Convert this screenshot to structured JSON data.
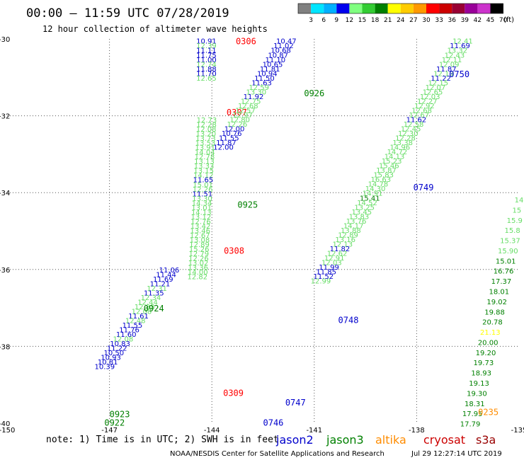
{
  "header": {
    "title": "00:00 – 11:59 UTC 07/28/2019",
    "subtitle": "12 hour collection of altimeter wave heights"
  },
  "colorbar": {
    "unit": "(ft)",
    "labels": [
      "3",
      "6",
      "9",
      "12",
      "15",
      "18",
      "21",
      "24",
      "27",
      "30",
      "33",
      "36",
      "39",
      "42",
      "45",
      "70"
    ],
    "colors": [
      "#808080",
      "#00e5ff",
      "#00b0ff",
      "#0000ee",
      "#80ff80",
      "#33cc33",
      "#008000",
      "#ffff00",
      "#ffcc00",
      "#ff9900",
      "#ff0000",
      "#cc0000",
      "#990033",
      "#990099",
      "#cc33cc",
      "#000000"
    ]
  },
  "footer": {
    "note": "note:  1) Time is in UTC;  2) SWH is in feet",
    "credit": "NOAA/NESDIS Center for Satellite Applications and Research",
    "timestamp": "Jul 29 12:27:14 UTC 2019",
    "legend": [
      {
        "name": "jason2",
        "color": "#0000cc"
      },
      {
        "name": "jason3",
        "color": "#008000"
      },
      {
        "name": "altika",
        "color": "#ff8c00"
      },
      {
        "name": "cryosat",
        "color": "#cc0000"
      },
      {
        "name": "s3a",
        "color": "#990000"
      }
    ]
  },
  "chart_data": {
    "type": "scatter",
    "xlim": [
      -150,
      -135
    ],
    "ylim": [
      -40,
      -30
    ],
    "x_ticks": [
      {
        "value": -150,
        "label": "-150"
      },
      {
        "value": -147,
        "label": "-147"
      },
      {
        "value": -144,
        "label": "-144"
      },
      {
        "value": -141,
        "label": "-141"
      },
      {
        "value": -138,
        "label": "-138"
      },
      {
        "value": -135,
        "label": "-135"
      }
    ],
    "y_ticks": [
      {
        "value": -30,
        "label": "-30"
      },
      {
        "value": -32,
        "label": "-32"
      },
      {
        "value": -34,
        "label": "-34"
      },
      {
        "value": -36,
        "label": "-36"
      },
      {
        "value": -38,
        "label": "-38"
      },
      {
        "value": -40,
        "label": "-40"
      }
    ],
    "grid": true,
    "colors": {
      "light": "#66dd66",
      "blue": "#0000cc",
      "green": "#008000",
      "red": "#ff0000",
      "orange": "#ff8c00",
      "yellow": "#ffff00"
    },
    "tracks": [
      {
        "label": "0306",
        "label_x": -143.3,
        "label_y": -30.05,
        "label_color": "red",
        "x_start": -144.16,
        "y_start": -30.05,
        "dx": 0,
        "dy": 0.12,
        "samples": [
          {
            "v": "10.91",
            "c": "blue"
          },
          {
            "v": "12.39",
            "c": "light"
          },
          {
            "v": "11.11",
            "c": "blue"
          },
          {
            "v": "11.75",
            "c": "blue"
          },
          {
            "v": "11.00",
            "c": "blue"
          },
          {
            "v": "12.74",
            "c": "light"
          },
          {
            "v": "11.88",
            "c": "blue"
          },
          {
            "v": "11.70",
            "c": "blue"
          },
          {
            "v": "12.65",
            "c": "light"
          }
        ]
      },
      {
        "label": "0307",
        "label_x": -143.57,
        "label_y": -31.9,
        "label_color": "red",
        "x_start": -144.15,
        "y_start": -32.1,
        "dx": -0.008,
        "dy": 0.12,
        "samples": [
          {
            "v": "12.73",
            "c": "light"
          },
          {
            "v": "12.28",
            "c": "light"
          },
          {
            "v": "12.08",
            "c": "light"
          },
          {
            "v": "13.20",
            "c": "light"
          },
          {
            "v": "13.73",
            "c": "light"
          },
          {
            "v": "13.53",
            "c": "light"
          },
          {
            "v": "13.91",
            "c": "light"
          },
          {
            "v": "14.04",
            "c": "light"
          },
          {
            "v": "12.78",
            "c": "light"
          },
          {
            "v": "13.13",
            "c": "light"
          },
          {
            "v": "13.33",
            "c": "light"
          },
          {
            "v": "13.15",
            "c": "light"
          },
          {
            "v": "14.12",
            "c": "light"
          },
          {
            "v": "11.65",
            "c": "blue"
          },
          {
            "v": "15.01",
            "c": "light"
          },
          {
            "v": "12.26",
            "c": "light"
          },
          {
            "v": "11.51",
            "c": "blue"
          },
          {
            "v": "13.30",
            "c": "light"
          },
          {
            "v": "14.34",
            "c": "light"
          },
          {
            "v": "13.01",
            "c": "light"
          },
          {
            "v": "14.13",
            "c": "light"
          },
          {
            "v": "13.12",
            "c": "light"
          },
          {
            "v": "12.76",
            "c": "light"
          },
          {
            "v": "13.42",
            "c": "light"
          },
          {
            "v": "13.46",
            "c": "light"
          },
          {
            "v": "12.67",
            "c": "light"
          },
          {
            "v": "13.08",
            "c": "light"
          },
          {
            "v": "12.89",
            "c": "light"
          },
          {
            "v": "15.26",
            "c": "light"
          },
          {
            "v": "12.79",
            "c": "light"
          },
          {
            "v": "12.26",
            "c": "light"
          },
          {
            "v": "13.02",
            "c": "light"
          },
          {
            "v": "13.36",
            "c": "light"
          },
          {
            "v": "14.00",
            "c": "light"
          },
          {
            "v": "12.82",
            "c": "light"
          }
        ]
      },
      {
        "label": "0308",
        "label_x": -143.65,
        "label_y": -35.5,
        "label_color": "red",
        "x_start": 0,
        "y_start": 0,
        "dx": 0,
        "dy": 0,
        "samples": []
      },
      {
        "label": "0309",
        "label_x": -143.67,
        "label_y": -39.2,
        "label_color": "red",
        "x_start": 0,
        "y_start": 0,
        "dx": 0,
        "dy": 0,
        "samples": []
      },
      {
        "label": "0926",
        "label_x": -141.3,
        "label_y": -31.4,
        "label_color": "green",
        "x_start": -141.82,
        "y_start": -30.05,
        "dx": -0.08,
        "dy": 0.12,
        "samples": [
          {
            "v": "10.47",
            "c": "blue"
          },
          {
            "v": "11.02",
            "c": "blue"
          },
          {
            "v": "10.68",
            "c": "blue"
          },
          {
            "v": "10.87",
            "c": "blue"
          },
          {
            "v": "11.10",
            "c": "blue"
          },
          {
            "v": "10.65",
            "c": "blue"
          },
          {
            "v": "11.81",
            "c": "blue"
          },
          {
            "v": "10.94",
            "c": "blue"
          },
          {
            "v": "11.50",
            "c": "blue"
          },
          {
            "v": "11.63",
            "c": "blue"
          },
          {
            "v": "12.59",
            "c": "light"
          },
          {
            "v": "13.30",
            "c": "light"
          },
          {
            "v": "11.92",
            "c": "blue"
          },
          {
            "v": "12.75",
            "c": "light"
          },
          {
            "v": "12.68",
            "c": "light"
          },
          {
            "v": "12.57",
            "c": "light"
          },
          {
            "v": "12.97",
            "c": "light"
          },
          {
            "v": "12.80",
            "c": "light"
          },
          {
            "v": "12.26",
            "c": "light"
          },
          {
            "v": "12.00",
            "c": "blue"
          },
          {
            "v": "10.76",
            "c": "blue"
          },
          {
            "v": "11.55",
            "c": "blue"
          },
          {
            "v": "11.87",
            "c": "blue"
          },
          {
            "v": "12.00",
            "c": "blue"
          }
        ]
      },
      {
        "label": "0925",
        "label_x": -143.25,
        "label_y": -34.3,
        "label_color": "green",
        "x_start": 0,
        "y_start": 0,
        "dx": 0,
        "dy": 0,
        "samples": []
      },
      {
        "label": "0924",
        "label_x": -146.0,
        "label_y": -37.0,
        "label_color": "green",
        "x_start": -145.25,
        "y_start": -36.0,
        "dx": -0.09,
        "dy": 0.12,
        "samples": [
          {
            "v": "11.06",
            "c": "blue"
          },
          {
            "v": "11.44",
            "c": "blue"
          },
          {
            "v": "11.69",
            "c": "blue"
          },
          {
            "v": "11.21",
            "c": "blue"
          },
          {
            "v": "12.31",
            "c": "light"
          },
          {
            "v": "11.35",
            "c": "blue"
          },
          {
            "v": "12.34",
            "c": "light"
          },
          {
            "v": "12.44",
            "c": "light"
          },
          {
            "v": "12.88",
            "c": "light"
          },
          {
            "v": "12.08",
            "c": "light"
          },
          {
            "v": "11.61",
            "c": "blue"
          },
          {
            "v": "12.48",
            "c": "light"
          },
          {
            "v": "11.55",
            "c": "blue"
          },
          {
            "v": "11.76",
            "c": "blue"
          },
          {
            "v": "11.60",
            "c": "blue"
          },
          {
            "v": "12.08",
            "c": "light"
          },
          {
            "v": "10.83",
            "c": "blue"
          },
          {
            "v": "11.22",
            "c": "blue"
          },
          {
            "v": "10.50",
            "c": "blue"
          },
          {
            "v": "10.93",
            "c": "blue"
          },
          {
            "v": "10.81",
            "c": "blue"
          },
          {
            "v": "10.39",
            "c": "blue"
          }
        ]
      },
      {
        "label": "0923",
        "label_x": -147.0,
        "label_y": -39.75,
        "label_color": "green",
        "x_start": 0,
        "y_start": 0,
        "dx": 0,
        "dy": 0,
        "samples": []
      },
      {
        "label": "0922",
        "label_x": -147.15,
        "label_y": -39.97,
        "label_color": "green",
        "x_start": 0,
        "y_start": 0,
        "dx": 0,
        "dy": 0,
        "samples": []
      },
      {
        "label": "0750",
        "label_x": -137.05,
        "label_y": -30.9,
        "label_color": "blue",
        "x_start": -136.65,
        "y_start": -30.05,
        "dx": -0.08,
        "dy": 0.12,
        "samples": [
          {
            "v": "12.41",
            "c": "light"
          },
          {
            "v": "11.69",
            "c": "blue"
          },
          {
            "v": "13.32",
            "c": "light"
          },
          {
            "v": "12.43",
            "c": "light"
          },
          {
            "v": "12.11",
            "c": "light"
          },
          {
            "v": "12.09",
            "c": "light"
          },
          {
            "v": "11.87",
            "c": "blue"
          },
          {
            "v": "12.19",
            "c": "light"
          },
          {
            "v": "11.22",
            "c": "blue"
          },
          {
            "v": "12.15",
            "c": "light"
          },
          {
            "v": "12.07",
            "c": "light"
          },
          {
            "v": "12.65",
            "c": "light"
          },
          {
            "v": "12.03",
            "c": "light"
          },
          {
            "v": "12.27",
            "c": "light"
          },
          {
            "v": "12.92",
            "c": "light"
          },
          {
            "v": "12.68",
            "c": "light"
          },
          {
            "v": "12.67",
            "c": "light"
          },
          {
            "v": "11.62",
            "c": "blue"
          },
          {
            "v": "12.58",
            "c": "light"
          },
          {
            "v": "12.45",
            "c": "light"
          },
          {
            "v": "12.30",
            "c": "light"
          },
          {
            "v": "12.28",
            "c": "light"
          },
          {
            "v": "13.38",
            "c": "light"
          },
          {
            "v": "14.96",
            "c": "light"
          },
          {
            "v": "14.72",
            "c": "light"
          },
          {
            "v": "14.13",
            "c": "light"
          },
          {
            "v": "15.23",
            "c": "light"
          },
          {
            "v": "15.46",
            "c": "light"
          },
          {
            "v": "13.87",
            "c": "light"
          },
          {
            "v": "15.83",
            "c": "light"
          },
          {
            "v": "16.63",
            "c": "light"
          },
          {
            "v": "14.78",
            "c": "light"
          },
          {
            "v": "14.30",
            "c": "light"
          },
          {
            "v": "14.91",
            "c": "light"
          },
          {
            "v": "15.41",
            "c": "green"
          },
          {
            "v": "14.52",
            "c": "light"
          },
          {
            "v": "13.25",
            "c": "light"
          },
          {
            "v": "13.45",
            "c": "light"
          },
          {
            "v": "13.83",
            "c": "light"
          },
          {
            "v": "13.76",
            "c": "light"
          },
          {
            "v": "14.17",
            "c": "light"
          },
          {
            "v": "13.88",
            "c": "light"
          },
          {
            "v": "12.89",
            "c": "light"
          },
          {
            "v": "13.16",
            "c": "light"
          },
          {
            "v": "12.13",
            "c": "light"
          },
          {
            "v": "11.82",
            "c": "blue"
          },
          {
            "v": "12.62",
            "c": "light"
          },
          {
            "v": "12.91",
            "c": "light"
          },
          {
            "v": "12.03",
            "c": "light"
          },
          {
            "v": "11.99",
            "c": "blue"
          },
          {
            "v": "11.85",
            "c": "blue"
          },
          {
            "v": "11.52",
            "c": "blue"
          },
          {
            "v": "12.99",
            "c": "light"
          }
        ]
      },
      {
        "label": "0749",
        "label_x": -138.1,
        "label_y": -33.85,
        "label_color": "blue",
        "x_start": 0,
        "y_start": 0,
        "dx": 0,
        "dy": 0,
        "samples": []
      },
      {
        "label": "0748",
        "label_x": -140.3,
        "label_y": -37.3,
        "label_color": "blue",
        "x_start": 0,
        "y_start": 0,
        "dx": 0,
        "dy": 0,
        "samples": []
      },
      {
        "label": "0747",
        "label_x": -141.85,
        "label_y": -39.45,
        "label_color": "blue",
        "x_start": 0,
        "y_start": 0,
        "dx": 0,
        "dy": 0,
        "samples": []
      },
      {
        "label": "0746",
        "label_x": -142.5,
        "label_y": -39.97,
        "label_color": "blue",
        "x_start": 0,
        "y_start": 0,
        "dx": 0,
        "dy": 0,
        "samples": []
      },
      {
        "label": "0235",
        "label_x": -136.2,
        "label_y": -39.7,
        "label_color": "orange",
        "x_start": -135.0,
        "y_start": -34.18,
        "dx": -0.065,
        "dy": 0.265,
        "samples": [
          {
            "v": "14",
            "c": "light"
          },
          {
            "v": "15",
            "c": "light"
          },
          {
            "v": "15.9",
            "c": "light"
          },
          {
            "v": "15.8",
            "c": "light"
          },
          {
            "v": "15.37",
            "c": "light"
          },
          {
            "v": "15.90",
            "c": "light"
          },
          {
            "v": "15.01",
            "c": "green"
          },
          {
            "v": "16.76",
            "c": "green"
          },
          {
            "v": "17.37",
            "c": "green"
          },
          {
            "v": "18.01",
            "c": "green"
          },
          {
            "v": "19.02",
            "c": "green"
          },
          {
            "v": "19.88",
            "c": "green"
          },
          {
            "v": "20.78",
            "c": "green"
          },
          {
            "v": "21.13",
            "c": "yellow"
          },
          {
            "v": "20.00",
            "c": "green"
          },
          {
            "v": "19.20",
            "c": "green"
          },
          {
            "v": "19.73",
            "c": "green"
          },
          {
            "v": "18.93",
            "c": "green"
          },
          {
            "v": "19.13",
            "c": "green"
          },
          {
            "v": "19.30",
            "c": "green"
          },
          {
            "v": "18.31",
            "c": "green"
          },
          {
            "v": "17.95",
            "c": "green"
          },
          {
            "v": "17.79",
            "c": "green"
          }
        ]
      }
    ]
  }
}
